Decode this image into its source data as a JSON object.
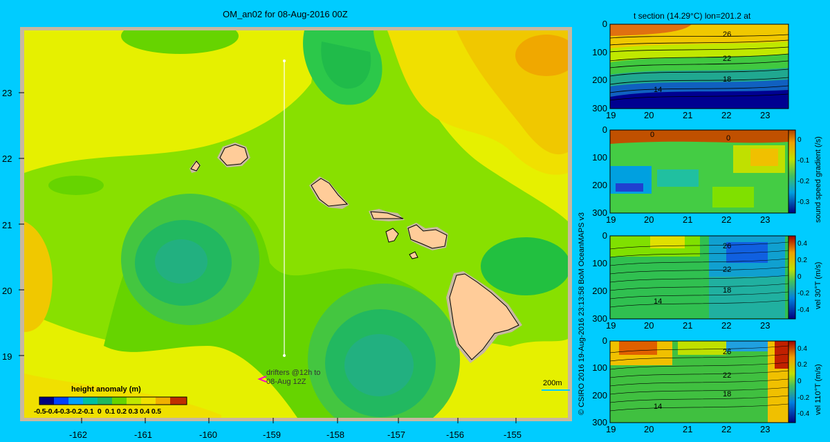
{
  "chart_data": [
    {
      "type": "heatmap",
      "title": "OM_an02 for 08-Aug-2016 00Z",
      "x_ticks": [
        "-162",
        "-161",
        "-160",
        "-159",
        "-158",
        "-157",
        "-156",
        "-155"
      ],
      "y_ticks": [
        "23",
        "22",
        "21",
        "20",
        "19"
      ],
      "colorbar_label": "height anomaly (m)",
      "colorbar_ticks": [
        "-0.5",
        "-0.4",
        "-0.3",
        "-0.2",
        "-0.1",
        "0",
        "0.1",
        "0.2",
        "0.3",
        "0.4",
        "0.5"
      ],
      "annotation_drifters": [
        "drifters @12h to",
        "08-Aug 12Z"
      ],
      "scale_label": "200m",
      "section_lon": -158.8,
      "section_lat_range": [
        18.99,
        23.5
      ]
    },
    {
      "type": "heatmap",
      "title": "t section (14.29°C) lon=201.2 at",
      "x_ticks": [
        "19",
        "20",
        "21",
        "22",
        "23"
      ],
      "y_ticks": [
        "0",
        "100",
        "200",
        "300"
      ],
      "contour_labels": [
        "26",
        "22",
        "18",
        "14"
      ]
    },
    {
      "type": "heatmap",
      "x_ticks": [
        "19",
        "20",
        "21",
        "22",
        "23"
      ],
      "y_ticks": [
        "0",
        "100",
        "200",
        "300"
      ],
      "contour_labels": [
        "0",
        "0"
      ],
      "colorbar_label": "sound speed gradient (/s)",
      "colorbar_ticks": [
        "0",
        "-0.1",
        "-0.2",
        "-0.3"
      ]
    },
    {
      "type": "heatmap",
      "x_ticks": [
        "19",
        "20",
        "21",
        "22",
        "23"
      ],
      "y_ticks": [
        "0",
        "100",
        "200",
        "300"
      ],
      "contour_labels": [
        "26",
        "22",
        "18",
        "14"
      ],
      "colorbar_label": "vel 30°T (m/s)",
      "colorbar_ticks": [
        "0.4",
        "0.2",
        "0",
        "-0.2",
        "-0.4"
      ]
    },
    {
      "type": "heatmap",
      "x_ticks": [
        "19",
        "20",
        "21",
        "22",
        "23"
      ],
      "y_ticks": [
        "0",
        "100",
        "200",
        "300"
      ],
      "contour_labels": [
        "26",
        "22",
        "18",
        "14"
      ],
      "colorbar_label": "vel 110°T (m/s)",
      "colorbar_ticks": [
        "0.4",
        "0.2",
        "0",
        "-0.2",
        "-0.4"
      ]
    }
  ],
  "credit": "© CSIRO 2016  19-Aug-2016 23:13:58 BoM OceanMAPS v3",
  "colors": {
    "background": "#00ccff",
    "land": "#ffcc99",
    "frame": "#c8b8a0"
  }
}
